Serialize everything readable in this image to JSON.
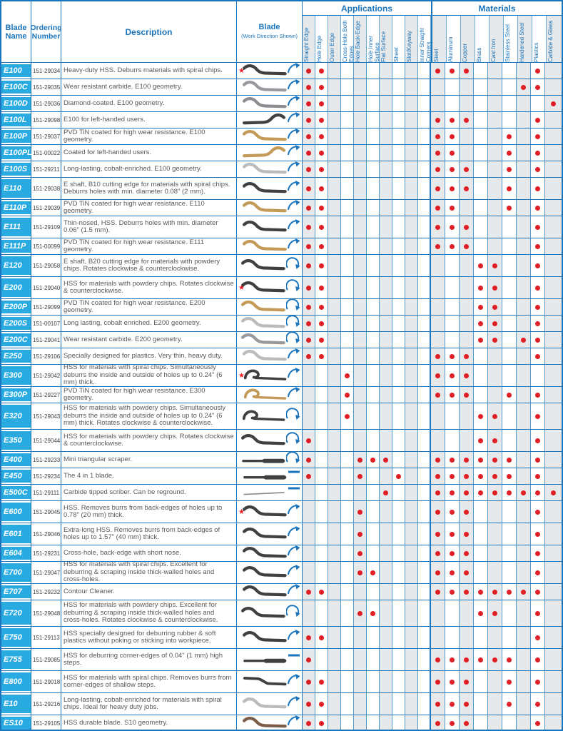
{
  "header": {
    "blade_name": "Blade Name",
    "ordering_number": "Ordering Number",
    "description": "Description",
    "blade": "Blade",
    "blade_sub": "(Work Direction Shown)",
    "applications_group": "Applications",
    "materials_group": "Materials",
    "application_columns": [
      "Straight Edge",
      "Hole Edge",
      "Outer Edge",
      "Cross-Hole Both Edges",
      "Hole Back-Edge",
      "Hole Inner Surface",
      "Flat Surface",
      "Sheet",
      "Slot/Keyway",
      "Inner Straight Corners"
    ],
    "material_columns": [
      "Steel",
      "Aluminum",
      "Copper",
      "Brass",
      "Cast Iron",
      "Stainless Steel",
      "Hardened Steel",
      "Plastics",
      "Carbide & Glass"
    ]
  },
  "colors": {
    "border_blue": "#1b75bc",
    "name_cell_cyan": "#29abe2",
    "dot_red": "#e01e25",
    "stripe_gray": "#e7e8e9",
    "star_red": "#ed1c24"
  },
  "rows": [
    {
      "name": "E100",
      "order": "151-29034",
      "desc": "Heavy-duty HSS. Deburrs materials with spiral chips.",
      "lines": 1,
      "star": true,
      "shape": "s",
      "color": "#3f4041",
      "arrow": "arc",
      "apps": [
        0,
        1
      ],
      "mats": [
        0,
        1,
        2,
        7
      ]
    },
    {
      "name": "E100C",
      "order": "151-29035",
      "desc": "Wear resistant carbide. E100 geometry.",
      "lines": 1,
      "star": false,
      "shape": "s",
      "color": "#97999c",
      "arrow": "arc",
      "apps": [
        0,
        1
      ],
      "mats": [
        6,
        7
      ]
    },
    {
      "name": "E100D",
      "order": "151-29036",
      "desc": "Diamond-coated. E100 geometry.",
      "lines": 1,
      "star": false,
      "shape": "s",
      "color": "#8b8d90",
      "arrow": "arc",
      "apps": [
        0,
        1
      ],
      "mats": [
        8
      ]
    },
    {
      "name": "E100L",
      "order": "151-29098",
      "desc": "E100 for left-handed users.",
      "lines": 1,
      "star": false,
      "shape": "s-left",
      "color": "#3f4041",
      "arrow": "arc",
      "apps": [
        0,
        1
      ],
      "mats": [
        0,
        1,
        2,
        7
      ]
    },
    {
      "name": "E100P",
      "order": "151-29037",
      "desc": "PVD TiN coated for high wear resistance. E100 geometry.",
      "lines": 1,
      "star": false,
      "shape": "s",
      "color": "#c49a58",
      "arrow": "arc",
      "apps": [
        0,
        1
      ],
      "mats": [
        0,
        1,
        5,
        7
      ]
    },
    {
      "name": "E100PL",
      "order": "151-00022",
      "desc": "Coated for left-handed users.",
      "lines": 1,
      "star": false,
      "shape": "s-left",
      "color": "#c49a58",
      "arrow": "arc",
      "apps": [
        0,
        1
      ],
      "mats": [
        0,
        1,
        5,
        7
      ]
    },
    {
      "name": "E100S",
      "order": "151-29211",
      "desc": "Long-lasting, cobalt-enriched. E100 geometry.",
      "lines": 1,
      "star": false,
      "shape": "s",
      "color": "#b9bbbd",
      "arrow": "arc",
      "apps": [
        0,
        1
      ],
      "mats": [
        0,
        1,
        2,
        5,
        7
      ]
    },
    {
      "name": "E110",
      "order": "151-29038",
      "desc": "E shaft, B10 cutting edge for materials with spiral chips. Deburrs holes with min. diameter 0.08\" (2 mm).",
      "lines": 2,
      "star": false,
      "shape": "s",
      "color": "#3f4041",
      "arrow": "arc",
      "apps": [
        0,
        1
      ],
      "mats": [
        0,
        1,
        2,
        5,
        7
      ]
    },
    {
      "name": "E110P",
      "order": "151-29039",
      "desc": "PVD TiN coated for high wear resistance. E110 geometry.",
      "lines": 1,
      "star": false,
      "shape": "s",
      "color": "#c49a58",
      "arrow": "arc",
      "apps": [
        0,
        1
      ],
      "mats": [
        0,
        1,
        5,
        7
      ]
    },
    {
      "name": "E111",
      "order": "151-29109",
      "desc": "Thin-nosed, HSS. Deburrs holes with min. diameter 0.06\" (1.5 mm).",
      "lines": 2,
      "star": false,
      "shape": "s",
      "color": "#3f4041",
      "arrow": "arc",
      "apps": [
        0,
        1
      ],
      "mats": [
        0,
        1,
        2,
        7
      ]
    },
    {
      "name": "E111P",
      "order": "151-00099",
      "desc": "PVD TiN coated for high wear resistance. E111 geometry.",
      "lines": 1,
      "star": false,
      "shape": "s",
      "color": "#c49a58",
      "arrow": "arc",
      "apps": [
        0,
        1
      ],
      "mats": [
        0,
        1,
        2,
        7
      ]
    },
    {
      "name": "E120",
      "order": "151-29058",
      "desc": "E shaft, B20 cutting edge for materials with powdery chips. Rotates clockwise & counterclockwise.",
      "lines": 2,
      "star": false,
      "shape": "s",
      "color": "#3f4041",
      "arrow": "semi",
      "apps": [
        0,
        1
      ],
      "mats": [
        3,
        4,
        7
      ]
    },
    {
      "name": "E200",
      "order": "151-29040",
      "desc": "HSS for materials with powdery chips. Rotates clockwise & counterclockwise.",
      "lines": 2,
      "star": true,
      "shape": "s",
      "color": "#3f4041",
      "arrow": "semi",
      "apps": [
        0,
        1
      ],
      "mats": [
        3,
        4,
        7
      ]
    },
    {
      "name": "E200P",
      "order": "151-29099",
      "desc": "PVD TiN coated for high wear resistance. E200 geometry.",
      "lines": 1,
      "star": false,
      "shape": "s",
      "color": "#c49a58",
      "arrow": "semi",
      "apps": [
        0,
        1
      ],
      "mats": [
        3,
        4,
        7
      ]
    },
    {
      "name": "E200S",
      "order": "151-00107",
      "desc": "Long lasting, cobalt enriched. E200 geometry.",
      "lines": 1,
      "star": false,
      "shape": "s",
      "color": "#b9bbbd",
      "arrow": "semi",
      "apps": [
        0,
        1
      ],
      "mats": [
        3,
        4,
        7
      ]
    },
    {
      "name": "E200C",
      "order": "151-29041",
      "desc": "Wear resistant carbide. E200 geometry.",
      "lines": 1,
      "star": false,
      "shape": "s",
      "color": "#97999c",
      "arrow": "semi",
      "apps": [
        0,
        1
      ],
      "mats": [
        3,
        4,
        6,
        7
      ]
    },
    {
      "name": "E250",
      "order": "151-29106",
      "desc": "Specially designed for plastics. Very thin, heavy duty.",
      "lines": 1,
      "star": false,
      "shape": "s",
      "color": "#b9bbbd",
      "arrow": "arc",
      "apps": [
        0,
        1
      ],
      "mats": [
        0,
        1,
        2,
        7
      ]
    },
    {
      "name": "E300",
      "order": "151-29042",
      "desc": "HSS for materials with spiral chips. Simultaneously deburrs the inside and outside of holes up to 0.24\" (6 mm) thick.",
      "lines": 2,
      "star": true,
      "shape": "hook",
      "color": "#3f4041",
      "arrow": "arc",
      "apps": [
        3
      ],
      "mats": [
        0,
        1,
        2
      ]
    },
    {
      "name": "E300P",
      "order": "151-29227",
      "desc": "PVD TiN coated for high wear resistance. E300 geometry.",
      "lines": 1,
      "star": false,
      "shape": "hook",
      "color": "#c49a58",
      "arrow": "arc",
      "apps": [
        3
      ],
      "mats": [
        0,
        1,
        2,
        5,
        7
      ]
    },
    {
      "name": "E320",
      "order": "151-29043",
      "desc": "HSS for materials with powdery chips. Simultaneously deburrs the inside and outside of holes up to 0.24\" (6 mm) thick. Rotates clockwise & counterclockwise.",
      "lines": 3,
      "star": false,
      "shape": "hook",
      "color": "#3f4041",
      "arrow": "semi",
      "apps": [
        3
      ],
      "mats": [
        3,
        4,
        7
      ]
    },
    {
      "name": "E350",
      "order": "151-29044",
      "desc": "HSS for materials with powdery chips. Rotates clockwise & counterclockwise.",
      "lines": 2,
      "star": false,
      "shape": "s",
      "color": "#3f4041",
      "arrow": "semi",
      "apps": [
        0
      ],
      "mats": [
        3,
        4,
        7
      ]
    },
    {
      "name": "E400",
      "order": "151-29233",
      "desc": "Mini triangular scraper.",
      "lines": 1,
      "star": false,
      "shape": "straight",
      "color": "#3f4041",
      "arrow": "semi",
      "apps": [
        0,
        4,
        5,
        6
      ],
      "mats": [
        0,
        1,
        2,
        3,
        4,
        5,
        7
      ]
    },
    {
      "name": "E450",
      "order": "151-29234",
      "desc": "The 4 in 1 blade.",
      "lines": 1,
      "star": false,
      "shape": "straight",
      "color": "#3f4041",
      "arrow": "line",
      "apps": [
        0,
        4,
        7
      ],
      "mats": [
        0,
        1,
        2,
        3,
        4,
        5,
        7
      ]
    },
    {
      "name": "E500C",
      "order": "151-29111",
      "desc": "Carbide tipped scriber. Can be reground.",
      "lines": 1,
      "star": false,
      "shape": "scriber",
      "color": "#8b8d90",
      "arrow": "line",
      "apps": [
        6
      ],
      "mats": [
        0,
        1,
        2,
        3,
        4,
        5,
        6,
        7,
        8
      ]
    },
    {
      "name": "E600",
      "order": "151-29045",
      "desc": "HSS. Removes burrs from back-edges of holes up to 0.78\" (20 mm) thick.",
      "lines": 2,
      "star": true,
      "shape": "s",
      "color": "#3f4041",
      "arrow": "arc",
      "apps": [
        4
      ],
      "mats": [
        0,
        1,
        2,
        7
      ]
    },
    {
      "name": "E601",
      "order": "151-29046",
      "desc": "Extra-long HSS. Removes burrs from back-edges of holes up to 1.57\" (40 mm) thick.",
      "lines": 2,
      "star": false,
      "shape": "s",
      "color": "#3f4041",
      "arrow": "arc",
      "apps": [
        4
      ],
      "mats": [
        0,
        1,
        2,
        7
      ]
    },
    {
      "name": "E604",
      "order": "151-29231",
      "desc": "Cross-hole, back-edge with short nose.",
      "lines": 1,
      "star": false,
      "shape": "s",
      "color": "#3f4041",
      "arrow": "arc",
      "apps": [
        4
      ],
      "mats": [
        0,
        1,
        2,
        7
      ]
    },
    {
      "name": "E700",
      "order": "151-29047",
      "desc": "HSS for materials with spiral chips. Excellent for deburring & scraping inside thick-walled holes and cross-holes.",
      "lines": 2,
      "star": false,
      "shape": "s",
      "color": "#3f4041",
      "arrow": "arc",
      "apps": [
        4,
        5
      ],
      "mats": [
        0,
        1,
        2,
        7
      ]
    },
    {
      "name": "E707",
      "order": "151-29232",
      "desc": "Contour Cleaner.",
      "lines": 1,
      "star": false,
      "shape": "s",
      "color": "#3f4041",
      "arrow": "arc",
      "apps": [
        0,
        1
      ],
      "mats": [
        0,
        1,
        2,
        3,
        4,
        5,
        6,
        7
      ]
    },
    {
      "name": "E720",
      "order": "151-29048",
      "desc": "HSS for materials with powdery chips. Excellent for deburring & scraping inside thick-walled holes and cross-holes. Rotates clockwise & counterclockwise.",
      "lines": 3,
      "star": false,
      "shape": "s",
      "color": "#3f4041",
      "arrow": "semi",
      "apps": [
        4,
        5
      ],
      "mats": [
        3,
        4,
        7
      ]
    },
    {
      "name": "E750",
      "order": "151-29113",
      "desc": "HSS specially designed for deburring rubber & soft plastics without poking or sticking into workpiece.",
      "lines": 2,
      "star": false,
      "shape": "s",
      "color": "#3f4041",
      "arrow": "arc",
      "apps": [
        0,
        1
      ],
      "mats": [
        7
      ]
    },
    {
      "name": "E755",
      "order": "151-29085",
      "desc": "HSS for deburring corner-edges of 0.04\" (1 mm) high steps.",
      "lines": 2,
      "star": false,
      "shape": "straight",
      "color": "#3f4041",
      "arrow": "line",
      "apps": [
        0
      ],
      "mats": [
        0,
        1,
        2,
        3,
        4,
        5,
        7
      ]
    },
    {
      "name": "E800",
      "order": "151-29018",
      "desc": "HSS for materials with spiral chips. Removes burrs from corner-edges of shallow steps.",
      "lines": 2,
      "star": false,
      "shape": "step",
      "color": "#3f4041",
      "arrow": "arc",
      "apps": [
        0,
        1
      ],
      "mats": [
        0,
        1,
        2,
        5,
        7
      ]
    },
    {
      "name": "E10",
      "order": "151-29216",
      "desc": "Long-lasting, cobalt-enriched for materials with spiral chips. Ideal for heavy duty jobs.",
      "lines": 2,
      "star": false,
      "shape": "s",
      "color": "#b9bbbd",
      "arrow": "arc",
      "apps": [
        0,
        1
      ],
      "mats": [
        0,
        1,
        2,
        5,
        7
      ]
    },
    {
      "name": "ES10",
      "order": "151-29105",
      "desc": "HSS durable blade. S10 geometry.",
      "lines": 1,
      "star": false,
      "shape": "s",
      "color": "#7a5c48",
      "arrow": "arc",
      "apps": [
        0,
        1
      ],
      "mats": [
        0,
        1,
        2,
        7
      ]
    }
  ]
}
